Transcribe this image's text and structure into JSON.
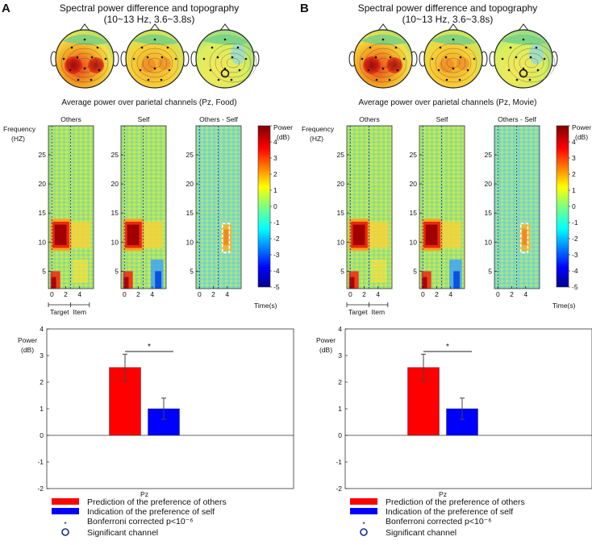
{
  "figure": {
    "panels": [
      {
        "letter": "A",
        "topo_title": "Spectral power difference and topography",
        "topo_subtitle": "(10~13 Hz, 3.6~3.8s)",
        "avg_title": "Average power over parietal channels (Pz, Food)"
      },
      {
        "letter": "B",
        "topo_title": "Spectral power difference and topography",
        "topo_subtitle": "(10~13 Hz, 3.6~3.8s)",
        "avg_title": "Average power over parietal channels (Pz, Movie)"
      }
    ],
    "spectrogram": {
      "freq_label_1": "Frequency",
      "freq_label_2": "(HZ)",
      "panel_titles": [
        "Others",
        "Self",
        "Others - Self"
      ],
      "y_ticks": [
        5,
        10,
        15,
        20,
        25
      ],
      "x_ticks": [
        0,
        2,
        4
      ],
      "time_label": "Time(s)",
      "segment_labels": [
        "Target",
        "Item"
      ],
      "colorbar_label_1": "Power",
      "colorbar_label_2": "(dB)",
      "colorbar_ticks": [
        5,
        4,
        3,
        2,
        1,
        0,
        -1,
        -2,
        -3,
        -4,
        -5
      ]
    },
    "legend": {
      "others": "Prediction of the preference of others",
      "self": "Indication of the preference of self",
      "star_symbol": "*",
      "bonferroni": "Bonferroni corrected p<10⁻⁶",
      "significant": "Significant channel"
    },
    "colors": {
      "others": "#ff0000",
      "self": "#0000ff",
      "marker": "#1a2a8a"
    }
  },
  "chart_data": [
    {
      "type": "bar",
      "panel": "A",
      "categories": [
        "Pz"
      ],
      "series": [
        {
          "name": "Prediction of the preference of others",
          "values": [
            2.55
          ],
          "error": [
            0.5
          ]
        },
        {
          "name": "Indication of the preference of self",
          "values": [
            1.0
          ],
          "error": [
            0.4
          ]
        }
      ],
      "ylabel": "Power (dB)",
      "ylim": [
        -2,
        4
      ],
      "yticks": [
        -2,
        -1,
        0,
        1,
        2,
        3,
        4
      ],
      "significance": "*"
    },
    {
      "type": "bar",
      "panel": "B",
      "categories": [
        "Pz"
      ],
      "series": [
        {
          "name": "Prediction of the preference of others",
          "values": [
            2.55
          ],
          "error": [
            0.5
          ]
        },
        {
          "name": "Indication of the preference of self",
          "values": [
            1.0
          ],
          "error": [
            0.4
          ]
        }
      ],
      "ylabel": "Power (dB)",
      "ylim": [
        -2,
        4
      ],
      "yticks": [
        -2,
        -1,
        0,
        1,
        2,
        3,
        4
      ],
      "significance": "*"
    }
  ]
}
